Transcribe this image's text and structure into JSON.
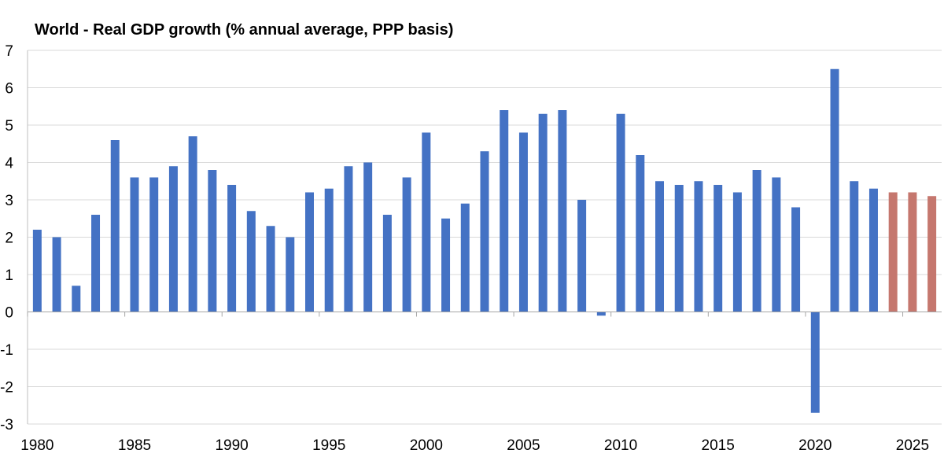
{
  "chart_data": {
    "type": "bar",
    "title": "World - Real GDP growth (% annual average, PPP basis)",
    "xlabel": "",
    "ylabel": "",
    "ylim": [
      -3,
      7
    ],
    "yticks": [
      "7",
      "6",
      "5",
      "4",
      "3",
      "2",
      "1",
      "0",
      "-1",
      "-2",
      "-3"
    ],
    "xtick_labels": [
      "1980",
      "1985",
      "1990",
      "1995",
      "2000",
      "2005",
      "2010",
      "2015",
      "2020",
      "2025"
    ],
    "grid": true,
    "legend": "none",
    "colors": {
      "actual": "#4472C4",
      "forecast": "#C5776E"
    },
    "categories": [
      1980,
      1981,
      1982,
      1983,
      1984,
      1985,
      1986,
      1987,
      1988,
      1989,
      1990,
      1991,
      1992,
      1993,
      1994,
      1995,
      1996,
      1997,
      1998,
      1999,
      2000,
      2001,
      2002,
      2003,
      2004,
      2005,
      2006,
      2007,
      2008,
      2009,
      2010,
      2011,
      2012,
      2013,
      2014,
      2015,
      2016,
      2017,
      2018,
      2019,
      2020,
      2021,
      2022,
      2023,
      2024,
      2025,
      2026
    ],
    "values": [
      2.2,
      2.0,
      0.7,
      2.6,
      4.6,
      3.6,
      3.6,
      3.9,
      4.7,
      3.8,
      3.4,
      2.7,
      2.3,
      2.0,
      3.2,
      3.3,
      3.9,
      4.0,
      2.6,
      3.6,
      4.8,
      2.5,
      2.9,
      4.3,
      5.4,
      4.8,
      5.3,
      5.4,
      3.0,
      -0.1,
      5.3,
      4.2,
      3.5,
      3.4,
      3.5,
      3.4,
      3.2,
      3.8,
      3.6,
      2.8,
      -2.7,
      6.5,
      3.5,
      3.3,
      3.2,
      3.2,
      3.1
    ],
    "forecast_from": 2024
  }
}
